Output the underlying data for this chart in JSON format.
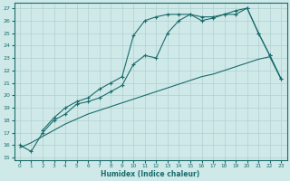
{
  "xlabel": "Humidex (Indice chaleur)",
  "bg_color": "#cfe9e9",
  "grid_color": "#b0d0d0",
  "line_color": "#1a6b6b",
  "xlim": [
    -0.5,
    23.5
  ],
  "ylim": [
    14.8,
    27.4
  ],
  "xticks": [
    0,
    1,
    2,
    3,
    4,
    5,
    6,
    7,
    8,
    9,
    10,
    11,
    12,
    13,
    14,
    15,
    16,
    17,
    18,
    19,
    20,
    21,
    22,
    23
  ],
  "yticks": [
    15,
    16,
    17,
    18,
    19,
    20,
    21,
    22,
    23,
    24,
    25,
    26,
    27
  ],
  "line1_x": [
    0,
    1,
    2,
    3,
    4,
    5,
    6,
    7,
    8,
    9,
    10,
    11,
    12,
    13,
    14,
    15,
    16,
    17,
    18,
    19,
    20,
    21,
    22,
    23
  ],
  "line1_y": [
    16.0,
    15.5,
    17.0,
    18.0,
    18.5,
    19.3,
    19.5,
    19.8,
    20.3,
    20.8,
    22.5,
    23.2,
    23.0,
    25.0,
    26.0,
    26.5,
    26.3,
    26.3,
    26.5,
    26.8,
    27.0,
    25.0,
    23.2,
    21.3
  ],
  "line2_x": [
    2,
    3,
    4,
    5,
    6,
    7,
    8,
    9,
    10,
    11,
    12,
    13,
    14,
    15,
    16,
    17,
    18,
    19,
    20,
    21,
    22,
    23
  ],
  "line2_y": [
    17.2,
    18.2,
    19.0,
    19.5,
    19.8,
    20.5,
    21.0,
    21.5,
    24.8,
    26.0,
    26.3,
    26.5,
    26.5,
    26.5,
    26.0,
    26.2,
    26.5,
    26.5,
    27.0,
    25.0,
    23.2,
    21.3
  ],
  "line3_x": [
    0,
    1,
    2,
    3,
    4,
    5,
    6,
    7,
    8,
    9,
    10,
    11,
    12,
    13,
    14,
    15,
    16,
    17,
    18,
    19,
    20,
    21,
    22,
    23
  ],
  "line3_y": [
    15.8,
    16.2,
    16.7,
    17.2,
    17.7,
    18.1,
    18.5,
    18.8,
    19.1,
    19.4,
    19.7,
    20.0,
    20.3,
    20.6,
    20.9,
    21.2,
    21.5,
    21.7,
    22.0,
    22.3,
    22.6,
    22.9,
    23.1,
    21.3
  ]
}
